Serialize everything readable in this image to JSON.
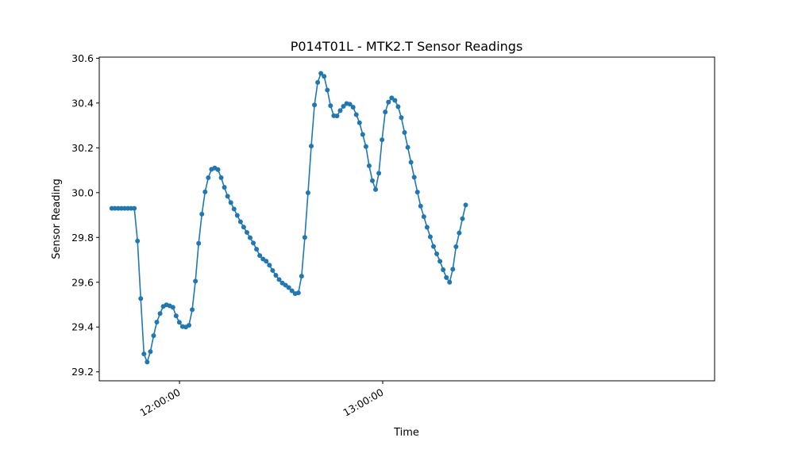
{
  "chart_data": {
    "type": "line",
    "title": "P014T01L - MTK2.T Sensor Readings",
    "xlabel": "Time",
    "ylabel": "Sensor Reading",
    "x_unit": "minutes after 11:40:00",
    "xlim": [
      -3.7,
      178
    ],
    "ylim": [
      29.16,
      30.605
    ],
    "xticks": [
      {
        "value": 20,
        "label": "12:00:00"
      },
      {
        "value": 80,
        "label": "13:00:00"
      }
    ],
    "yticks": [
      {
        "value": 29.2,
        "label": "29.2"
      },
      {
        "value": 29.4,
        "label": "29.4"
      },
      {
        "value": 29.6,
        "label": "29.6"
      },
      {
        "value": 29.8,
        "label": "29.8"
      },
      {
        "value": 30.0,
        "label": "30.0"
      },
      {
        "value": 30.2,
        "label": "30.2"
      },
      {
        "value": 30.4,
        "label": "30.4"
      },
      {
        "value": 30.6,
        "label": "30.6"
      }
    ],
    "grid": false,
    "legend": "none",
    "series_color": "#1f77b4",
    "series": [
      {
        "x": [
          0,
          7.1,
          7.5,
          8.0,
          8.5,
          9.0,
          9.5,
          10.0,
          11.0,
          13.0,
          15.0,
          16.0,
          18.0,
          19.5,
          21.0,
          22.0,
          23.0,
          24.0,
          25.0,
          26.0,
          27.5,
          29.0,
          30.0,
          30.5,
          31.0,
          31.5,
          32.0,
          34.0,
          36.0,
          38.0,
          40.0,
          42.0,
          44.0,
          46.0,
          48.0,
          50.0,
          52.0,
          54.0,
          55.0,
          56.0,
          56.5,
          57.0,
          58.0,
          59.0,
          60.0,
          61.0,
          62.0,
          63.0,
          64.0,
          65.0,
          66.0,
          68.0,
          69.5,
          71.0,
          73.0,
          75.0,
          76.0,
          77.0,
          78.0,
          79.0,
          80.0,
          81.0,
          83.0,
          85.0,
          87.0,
          89.0,
          91.0,
          93.0,
          95.0,
          97.0,
          98.5,
          99.5,
          100.0,
          100.5,
          101.0,
          102.0,
          103.0,
          104.0,
          105.0
        ],
        "values": [
          29.93,
          29.93,
          29.81,
          29.68,
          29.54,
          29.41,
          29.28,
          29.23,
          29.26,
          29.41,
          29.49,
          29.5,
          29.49,
          29.43,
          29.4,
          29.4,
          29.41,
          29.5,
          29.65,
          29.84,
          30.0,
          30.1,
          30.11,
          30.11,
          30.11,
          30.1,
          30.08,
          29.99,
          29.93,
          29.87,
          29.82,
          29.77,
          29.71,
          29.69,
          29.64,
          29.6,
          29.58,
          29.55,
          29.545,
          29.62,
          29.69,
          29.8,
          30.01,
          30.23,
          30.42,
          30.51,
          30.54,
          30.51,
          30.43,
          30.36,
          30.33,
          30.38,
          30.4,
          30.39,
          30.32,
          30.21,
          30.12,
          30.05,
          30.01,
          30.1,
          30.27,
          30.39,
          30.43,
          30.37,
          30.23,
          30.09,
          29.95,
          29.85,
          29.76,
          29.69,
          29.63,
          29.6,
          29.6,
          29.63,
          29.7,
          29.79,
          29.84,
          29.92,
          29.97
        ]
      }
    ]
  }
}
